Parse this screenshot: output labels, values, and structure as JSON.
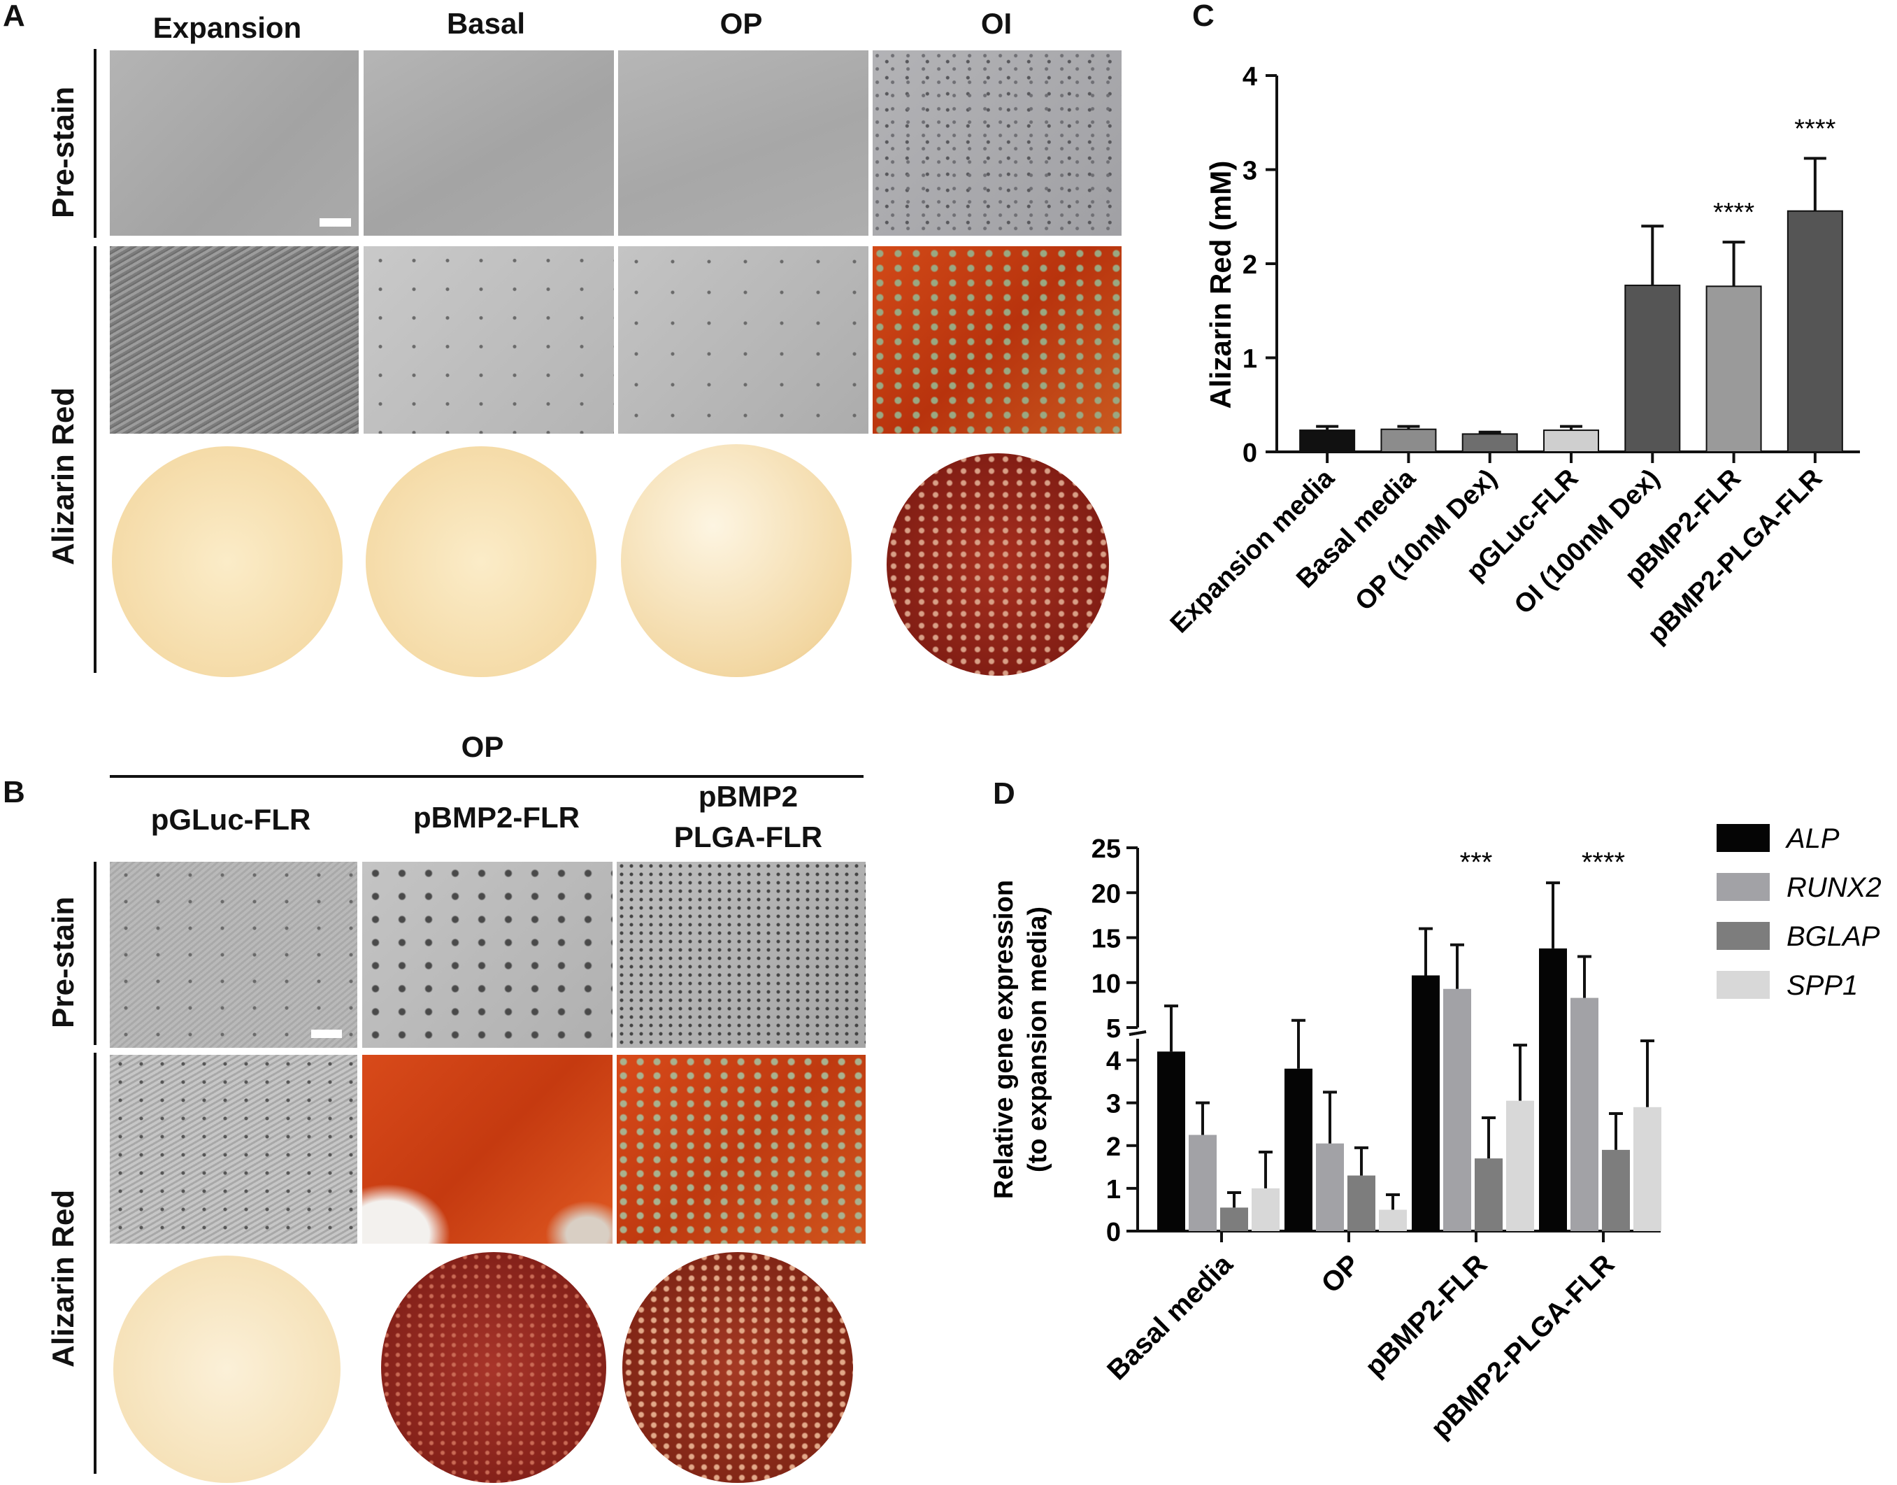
{
  "panel_a": {
    "letter": "A",
    "columns": [
      "Expansion",
      "Basal",
      "OP",
      "OI"
    ],
    "rows": [
      "Pre-stain",
      "Alizarin Red"
    ]
  },
  "panel_b": {
    "letter": "B",
    "group_label": "OP",
    "columns": [
      "pGLuc-FLR",
      "pBMP2-FLR",
      "pBMP2",
      "PLGA-FLR"
    ],
    "rows": [
      "Pre-stain",
      "Alizarin Red"
    ]
  },
  "panel_c": {
    "letter": "C",
    "chart_data": {
      "type": "bar",
      "ylabel": "Alizarin Red (mM)",
      "ylim": [
        0,
        4
      ],
      "yticks": [
        "0",
        "1",
        "2",
        "3",
        "4"
      ],
      "categories": [
        "Expansion media",
        "Basal media",
        "OP (10nM Dex)",
        "pGLuc-FLR",
        "OI (100nM Dex)",
        "pBMP2-FLR",
        "pBMP2-PLGA-FLR"
      ],
      "values": [
        0.23,
        0.24,
        0.19,
        0.23,
        1.77,
        1.76,
        2.56
      ],
      "errors": [
        0.04,
        0.03,
        0.02,
        0.04,
        0.63,
        0.47,
        0.56
      ],
      "significance": [
        "",
        "",
        "",
        "",
        "",
        "****",
        "****"
      ],
      "colors": [
        "#111111",
        "#8c8c8c",
        "#6e6e6e",
        "#cfcfcf",
        "#555555",
        "#9a9a9a",
        "#555555"
      ]
    }
  },
  "panel_d": {
    "letter": "D",
    "chart_data": {
      "type": "bar",
      "ylabel_line1": "Relative gene expression",
      "ylabel_line2": "(to expansion media)",
      "yscale": "broken",
      "ylim_lower": [
        0,
        4.5
      ],
      "ylim_upper": [
        5,
        25
      ],
      "yticks": [
        "0",
        "1",
        "2",
        "3",
        "4",
        "5",
        "10",
        "15",
        "20",
        "25"
      ],
      "categories": [
        "Basal media",
        "OP",
        "pBMP2-FLR",
        "pBMP2-PLGA-FLR"
      ],
      "series": [
        {
          "name": "ALP",
          "color": "#050505",
          "values": [
            4.2,
            3.8,
            10.8,
            13.8
          ],
          "errors": [
            3.2,
            2.0,
            5.2,
            7.3
          ]
        },
        {
          "name": "RUNX2",
          "color": "#a2a2a6",
          "values": [
            2.25,
            2.05,
            9.3,
            8.3
          ],
          "errors": [
            0.75,
            1.2,
            4.9,
            4.6
          ]
        },
        {
          "name": "BGLAP",
          "color": "#7d7d7d",
          "values": [
            0.55,
            1.3,
            1.7,
            1.9
          ],
          "errors": [
            0.35,
            0.65,
            0.95,
            0.85
          ]
        },
        {
          "name": "SPP1",
          "color": "#d8d8d8",
          "values": [
            1.0,
            0.5,
            3.05,
            2.9
          ],
          "errors": [
            0.85,
            0.35,
            1.3,
            1.55
          ]
        }
      ],
      "significance": [
        "",
        "",
        "***",
        "****"
      ]
    }
  }
}
